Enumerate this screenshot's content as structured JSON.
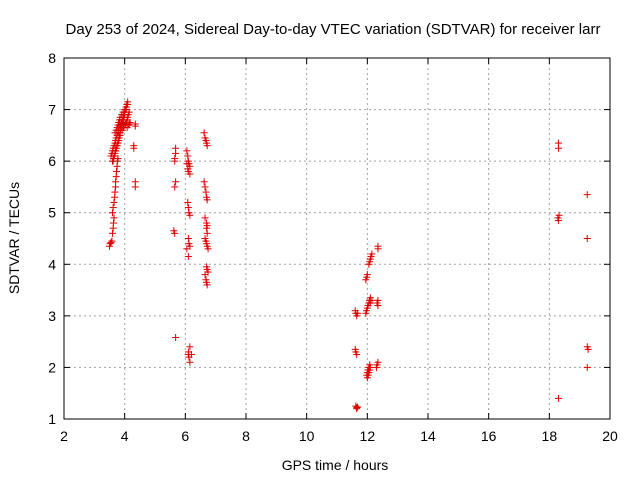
{
  "chart_data": {
    "type": "scatter",
    "title": "Day 253 of 2024, Sidereal Day-to-day VTEC variation (SDTVAR) for receiver larr",
    "xlabel": "GPS time / hours",
    "ylabel": "SDTVAR / TECUs",
    "xlim": [
      2,
      20
    ],
    "ylim": [
      1,
      8
    ],
    "x_ticks": [
      2,
      4,
      6,
      8,
      10,
      12,
      14,
      16,
      18,
      20
    ],
    "x_tick_labels": [
      "2",
      "4",
      "6",
      "8",
      "10",
      "12",
      "14",
      "16",
      "18",
      "20"
    ],
    "y_ticks": [
      1,
      2,
      3,
      4,
      5,
      6,
      7,
      8
    ],
    "y_tick_labels": [
      "1",
      "2",
      "3",
      "4",
      "5",
      "6",
      "7",
      "8"
    ],
    "grid": true,
    "marker": "+",
    "color": "#e00000",
    "series": [
      {
        "name": "SDTVAR",
        "x": [
          3.5,
          3.52,
          3.55,
          3.58,
          3.6,
          3.62,
          3.63,
          3.65,
          3.6,
          3.62,
          3.65,
          3.67,
          3.68,
          3.7,
          3.7,
          3.72,
          3.73,
          3.75,
          3.76,
          3.78,
          3.6,
          3.63,
          3.65,
          3.68,
          3.7,
          3.72,
          3.75,
          3.78,
          3.8,
          3.82,
          3.85,
          3.87,
          3.9,
          3.92,
          3.95,
          3.97,
          4.0,
          4.02,
          4.05,
          4.07,
          4.1,
          3.55,
          3.58,
          3.6,
          3.62,
          3.65,
          3.68,
          3.7,
          3.72,
          3.75,
          3.78,
          3.8,
          3.82,
          3.85,
          3.88,
          3.9,
          3.92,
          3.95,
          3.98,
          4.0,
          4.05,
          3.62,
          3.66,
          3.7,
          3.72,
          3.75,
          3.77,
          3.8,
          3.82,
          3.85,
          3.68,
          3.72,
          3.75,
          3.78,
          3.8,
          3.83,
          3.85,
          3.9,
          3.95,
          4.0,
          4.05,
          4.1,
          3.92,
          3.96,
          4.0,
          4.03,
          4.06,
          4.08,
          4.1,
          4.12,
          4.15,
          4.08,
          4.12,
          4.15,
          4.18,
          4.35,
          4.35,
          4.3,
          4.3,
          4.35,
          4.35,
          5.68,
          5.68,
          5.65,
          5.65,
          5.68,
          5.65,
          5.62,
          5.65,
          5.68,
          6.05,
          6.08,
          6.1,
          6.12,
          6.15,
          6.05,
          6.08,
          6.1,
          6.15,
          6.08,
          6.1,
          6.12,
          6.15,
          6.1,
          6.12,
          6.15,
          6.05,
          6.1,
          6.15,
          6.1,
          6.1,
          6.12,
          6.15,
          6.2,
          6.62,
          6.65,
          6.68,
          6.7,
          6.72,
          6.65,
          6.7,
          6.72,
          6.7,
          6.72,
          6.65,
          6.68,
          6.7,
          6.72,
          6.75,
          6.7,
          6.72,
          6.75,
          6.65,
          6.68,
          6.7,
          6.72,
          6.62,
          6.65,
          6.68,
          6.7,
          6.72,
          11.6,
          11.62,
          11.65,
          11.68,
          11.6,
          11.62,
          11.65,
          11.62,
          11.65,
          11.65,
          11.68,
          11.95,
          11.97,
          12.0,
          12.02,
          12.05,
          12.07,
          12.1,
          11.95,
          11.98,
          12.0,
          12.05,
          12.08,
          12.1,
          12.12,
          12.15,
          11.98,
          12.0,
          12.02,
          12.05,
          12.08,
          12.0,
          12.03,
          12.05,
          12.08,
          12.1,
          12.1,
          12.15,
          12.35,
          12.35,
          12.3,
          12.32,
          12.35,
          12.35,
          12.32,
          12.35,
          18.3,
          18.3,
          18.28,
          18.3,
          18.32,
          18.3,
          19.25,
          19.25,
          19.25,
          19.28,
          19.25
        ],
        "y": [
          4.35,
          4.4,
          4.42,
          4.45,
          4.6,
          4.7,
          4.8,
          4.9,
          5.0,
          5.1,
          5.2,
          5.3,
          5.4,
          5.5,
          5.6,
          5.7,
          5.8,
          5.9,
          6.0,
          6.05,
          6.0,
          6.05,
          6.1,
          6.15,
          6.2,
          6.25,
          6.3,
          6.35,
          6.4,
          6.5,
          6.55,
          6.6,
          6.65,
          6.7,
          6.75,
          6.8,
          6.9,
          7.0,
          7.05,
          7.1,
          7.15,
          6.1,
          6.15,
          6.2,
          6.25,
          6.3,
          6.35,
          6.4,
          6.45,
          6.5,
          6.55,
          6.6,
          6.65,
          6.7,
          6.72,
          6.75,
          6.8,
          6.85,
          6.9,
          6.95,
          7.0,
          6.0,
          6.1,
          6.2,
          6.25,
          6.3,
          6.35,
          6.4,
          6.45,
          6.5,
          6.55,
          6.6,
          6.65,
          6.7,
          6.75,
          6.8,
          6.85,
          6.9,
          6.95,
          7.0,
          7.05,
          7.1,
          6.6,
          6.65,
          6.7,
          6.72,
          6.75,
          6.8,
          6.85,
          6.9,
          6.95,
          6.65,
          6.7,
          6.72,
          6.75,
          6.72,
          6.68,
          6.3,
          6.25,
          5.6,
          5.5,
          6.25,
          6.15,
          6.05,
          6.0,
          5.6,
          5.5,
          4.65,
          4.6,
          2.58,
          6.2,
          6.1,
          6.0,
          5.95,
          5.9,
          5.95,
          5.85,
          5.8,
          5.75,
          5.2,
          5.1,
          5.0,
          4.95,
          4.5,
          4.4,
          4.35,
          4.3,
          4.15,
          2.4,
          2.3,
          2.25,
          2.2,
          2.1,
          2.25,
          5.6,
          5.5,
          5.4,
          5.3,
          5.25,
          4.9,
          4.8,
          4.75,
          4.7,
          4.6,
          4.5,
          4.45,
          4.4,
          4.35,
          4.3,
          3.95,
          3.9,
          3.85,
          3.8,
          3.7,
          3.65,
          3.6,
          6.55,
          6.45,
          6.4,
          6.35,
          6.3,
          3.1,
          3.05,
          3.0,
          3.05,
          2.35,
          2.3,
          2.25,
          1.25,
          1.22,
          1.2,
          1.23,
          3.05,
          3.1,
          3.15,
          3.2,
          3.25,
          3.3,
          3.35,
          3.7,
          3.75,
          3.8,
          4.0,
          4.05,
          4.1,
          4.15,
          4.2,
          1.85,
          1.9,
          1.95,
          2.0,
          2.05,
          1.8,
          1.85,
          1.9,
          1.95,
          2.0,
          3.25,
          3.3,
          4.3,
          4.35,
          2.0,
          2.05,
          2.1,
          3.2,
          3.25,
          3.3,
          6.35,
          6.25,
          4.9,
          4.85,
          4.95,
          1.4,
          5.35,
          4.5,
          2.4,
          2.35,
          2.0
        ]
      }
    ]
  }
}
